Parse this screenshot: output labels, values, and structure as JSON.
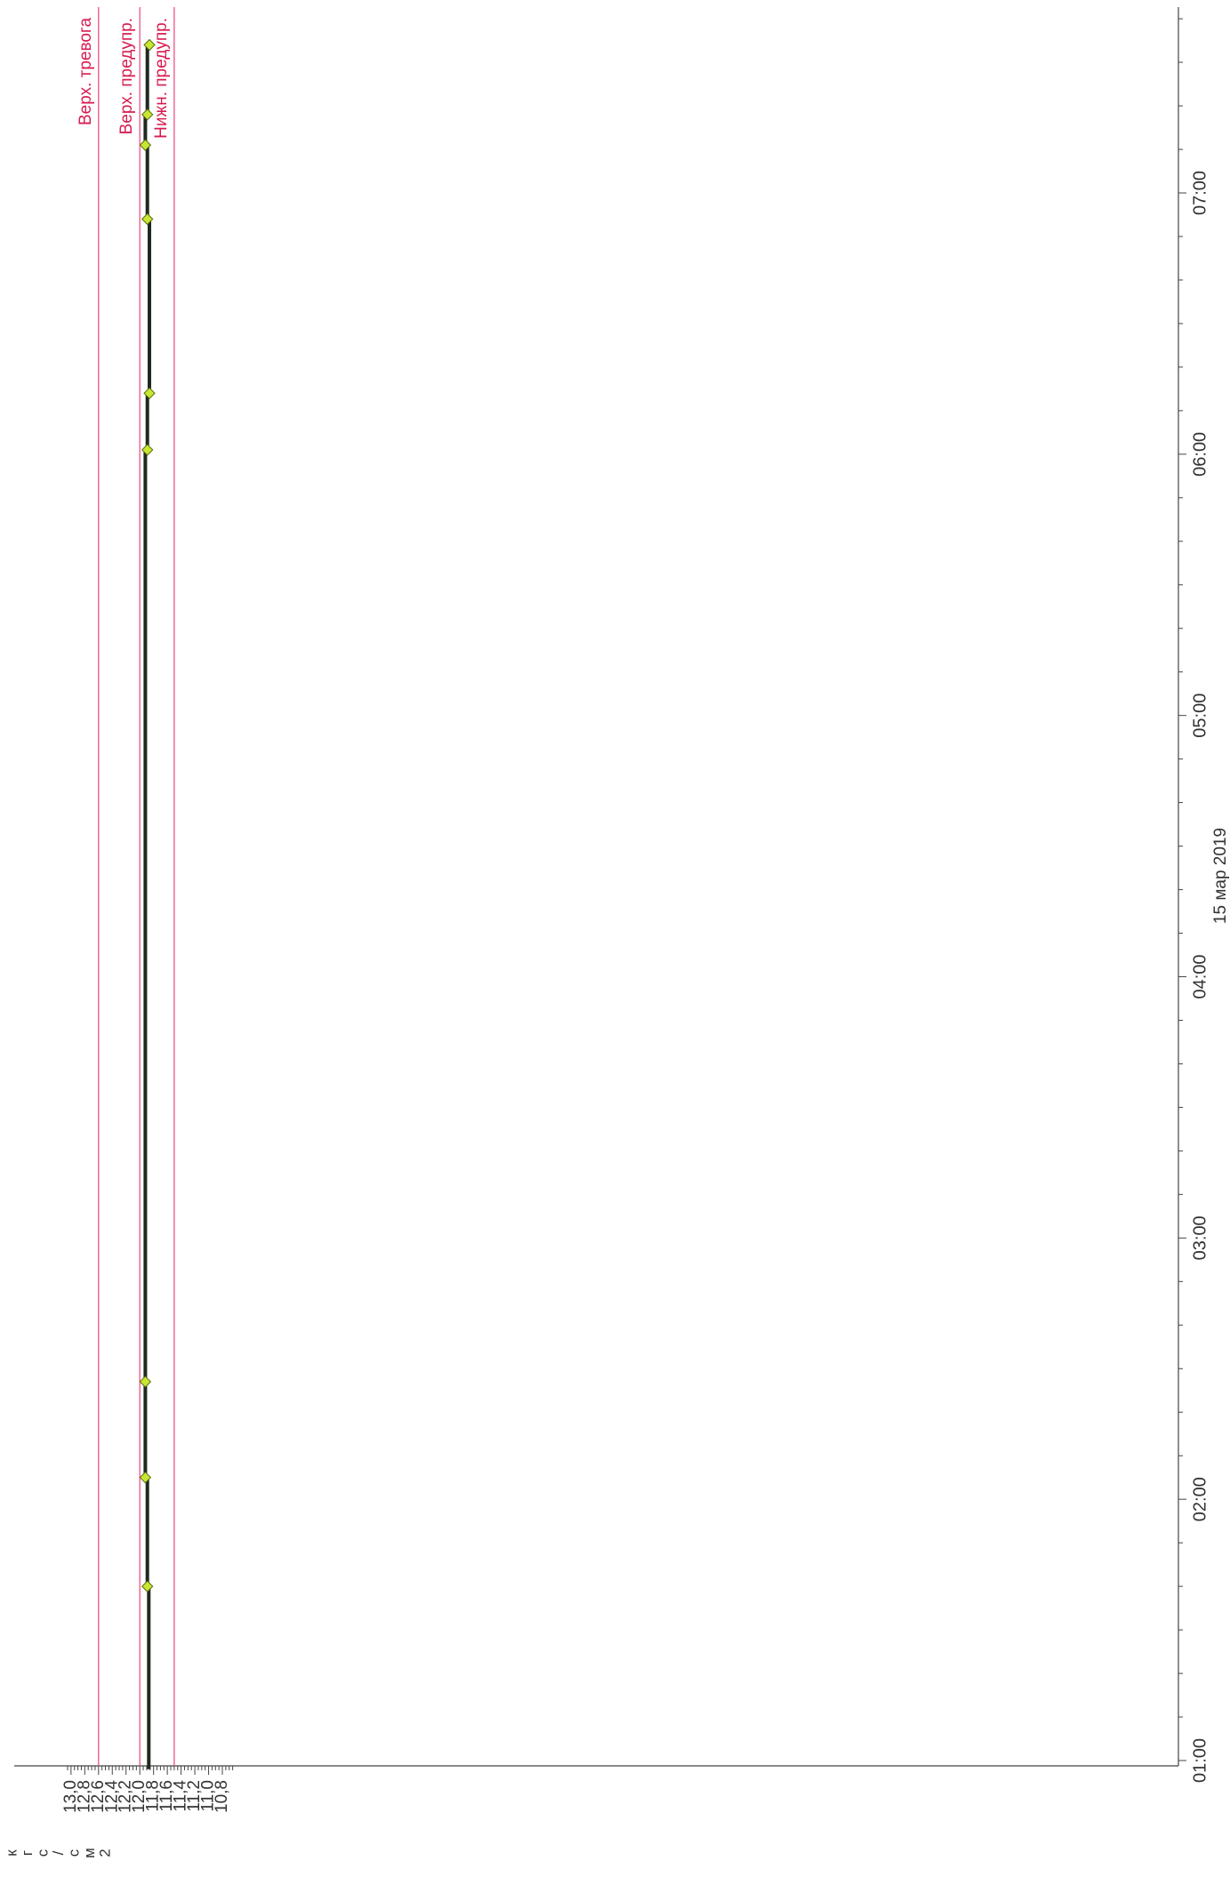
{
  "chart_data": {
    "type": "line",
    "orientation": "rotated-90-clockwise",
    "value_axis": {
      "unit_letters": [
        "к",
        "г",
        "с",
        "/",
        "с",
        "м",
        "2"
      ],
      "range": [
        10.6,
        13.1
      ],
      "ticks": [
        "13,0",
        "12,8",
        "12,6",
        "12,4",
        "12,2",
        "12,0",
        "11,8",
        "11,6",
        "11,4",
        "11,2",
        "11,0",
        "10,8"
      ],
      "tick_values": [
        13.0,
        12.8,
        12.6,
        12.4,
        12.2,
        12.0,
        11.8,
        11.6,
        11.4,
        11.2,
        11.0,
        10.8
      ]
    },
    "time_axis": {
      "range": [
        "00:58",
        "07:44"
      ],
      "ticks": [
        "01:00",
        "02:00",
        "03:00",
        "04:00",
        "05:00",
        "06:00",
        "07:00"
      ],
      "tick_minutes": [
        60,
        120,
        180,
        240,
        300,
        360,
        420
      ],
      "date_label": "15 мар 2019"
    },
    "thresholds": [
      {
        "label": "Верх. тревога",
        "value": 12.6
      },
      {
        "label": "Верх. предупр.",
        "value": 12.0
      },
      {
        "label": "Нижн. предупр.",
        "value": 11.5
      }
    ],
    "series": [
      {
        "line_style": "step",
        "points": [
          {
            "t": "00:58",
            "v": 11.87
          },
          {
            "t": "01:40",
            "v": 11.87
          },
          {
            "t": "01:40",
            "v": 11.89
          },
          {
            "t": "02:05",
            "v": 11.89
          },
          {
            "t": "02:05",
            "v": 11.92
          },
          {
            "t": "02:27",
            "v": 11.92
          },
          {
            "t": "06:01",
            "v": 11.92
          },
          {
            "t": "06:01",
            "v": 11.89
          },
          {
            "t": "06:14",
            "v": 11.89
          },
          {
            "t": "06:14",
            "v": 11.86
          },
          {
            "t": "06:54",
            "v": 11.86
          },
          {
            "t": "06:54",
            "v": 11.89
          },
          {
            "t": "07:11",
            "v": 11.89
          },
          {
            "t": "07:11",
            "v": 11.92
          },
          {
            "t": "07:18",
            "v": 11.92
          },
          {
            "t": "07:18",
            "v": 11.89
          },
          {
            "t": "07:34",
            "v": 11.89
          },
          {
            "t": "07:34",
            "v": 11.86
          }
        ],
        "markers": [
          {
            "t": "01:40",
            "v": 11.89
          },
          {
            "t": "02:05",
            "v": 11.92
          },
          {
            "t": "02:27",
            "v": 11.92
          },
          {
            "t": "06:01",
            "v": 11.89
          },
          {
            "t": "06:14",
            "v": 11.86
          },
          {
            "t": "06:54",
            "v": 11.89
          },
          {
            "t": "07:11",
            "v": 11.92
          },
          {
            "t": "07:18",
            "v": 11.89
          },
          {
            "t": "07:34",
            "v": 11.86
          }
        ]
      }
    ],
    "colors": {
      "threshold": "#e8467c",
      "threshold_text": "#d81b50",
      "series_line": "#1e2a1e",
      "marker_fill": "#c8e632",
      "marker_stroke": "#5a6a10",
      "axis": "#444444"
    },
    "grid": false
  }
}
